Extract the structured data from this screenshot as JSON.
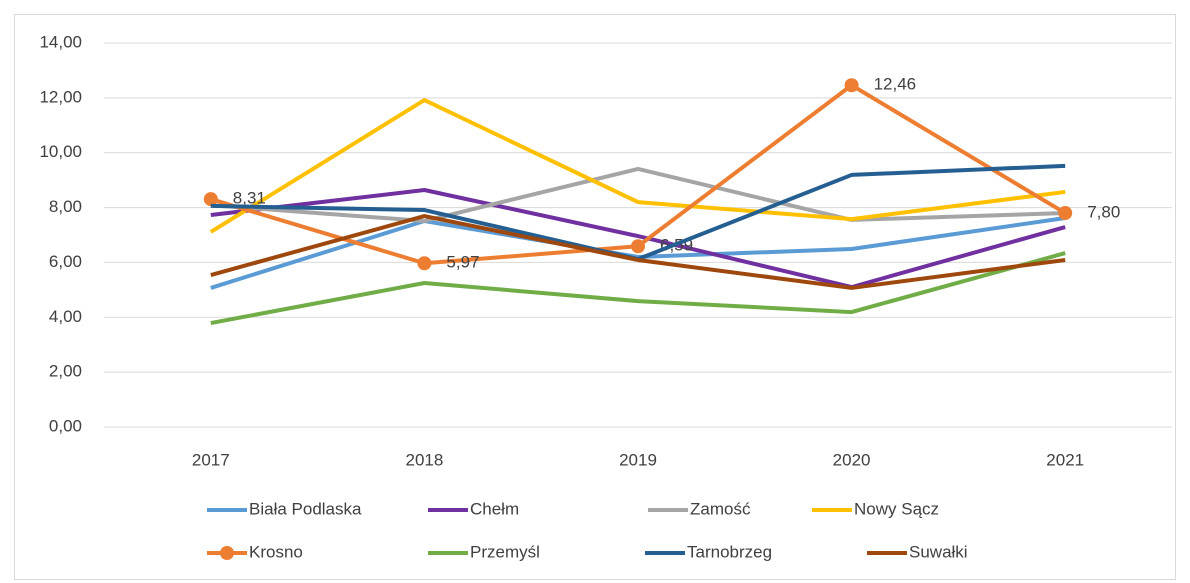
{
  "chart_data": {
    "type": "line",
    "categories": [
      "2017",
      "2018",
      "2019",
      "2020",
      "2021"
    ],
    "series": [
      {
        "name": "Biała Podlaska",
        "color": "#5b9bd5",
        "values": [
          5.07,
          7.51,
          6.2,
          6.49,
          7.62
        ]
      },
      {
        "name": "Chełm",
        "color": "#7030a0",
        "values": [
          7.73,
          8.64,
          6.96,
          5.1,
          7.29
        ]
      },
      {
        "name": "Zamość",
        "color": "#a5a5a5",
        "values": [
          8.09,
          7.51,
          9.41,
          7.55,
          7.8
        ]
      },
      {
        "name": "Nowy Sącz",
        "color": "#ffc000",
        "values": [
          7.11,
          11.92,
          8.2,
          7.58,
          8.57
        ]
      },
      {
        "name": "Krosno",
        "color": "#ed7d31",
        "marker": true,
        "values": [
          8.31,
          5.97,
          6.59,
          12.46,
          7.8
        ],
        "value_labels": [
          "8,31",
          "5,97",
          "6,59",
          "12,46",
          "7,80"
        ]
      },
      {
        "name": "Przemyśl",
        "color": "#70ad47",
        "values": [
          3.79,
          5.25,
          4.59,
          4.19,
          6.34
        ]
      },
      {
        "name": "Tarnobrzeg",
        "color": "#255e91",
        "values": [
          8.06,
          7.91,
          6.12,
          9.19,
          9.52
        ]
      },
      {
        "name": "Suwałki",
        "color": "#9e480e",
        "values": [
          5.54,
          7.69,
          6.09,
          5.07,
          6.09
        ]
      }
    ],
    "ylim": [
      0,
      14
    ],
    "yticks": [
      {
        "value": 0,
        "label": "0,00"
      },
      {
        "value": 2,
        "label": "2,00"
      },
      {
        "value": 4,
        "label": "4,00"
      },
      {
        "value": 6,
        "label": "6,00"
      },
      {
        "value": 8,
        "label": "8,00"
      },
      {
        "value": 10,
        "label": "10,00"
      },
      {
        "value": 12,
        "label": "12,00"
      },
      {
        "value": 14,
        "label": "14,00"
      }
    ],
    "grid": true
  }
}
